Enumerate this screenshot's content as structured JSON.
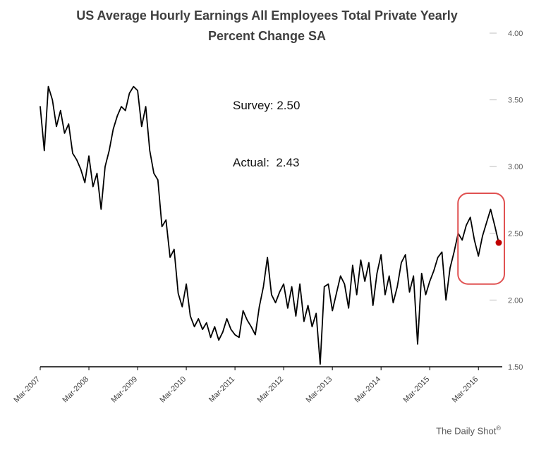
{
  "page": {
    "title_line1": "US Average Hourly Earnings All Employees Total Private Yearly",
    "title_line2": "Percent Change SA",
    "watermark_text": "The Daily Shot",
    "watermark_symbol": "®"
  },
  "annotation": {
    "survey": "Survey: 2.50",
    "actual": "Actual:  2.43"
  },
  "chart_data": {
    "type": "line",
    "title": "US Average Hourly Earnings All Employees Total Private Yearly Percent Change SA",
    "xlabel": "",
    "ylabel": "",
    "x_start_label": "Mar-2007",
    "x_interval": "monthly",
    "x_tick_labels": [
      "Mar-2007",
      "Mar-2008",
      "Mar-2009",
      "Mar-2010",
      "Mar-2011",
      "Mar-2012",
      "Mar-2013",
      "Mar-2014",
      "Mar-2015",
      "Mar-2016"
    ],
    "x_tick_indices": [
      0,
      12,
      24,
      36,
      48,
      60,
      72,
      84,
      96,
      108
    ],
    "y_ticks": [
      "1.50",
      "2.00",
      "2.50",
      "3.00",
      "3.50",
      "4.00"
    ],
    "ylim": [
      1.5,
      4.0
    ],
    "grid": "off",
    "legend": "none",
    "line_color": "#000000",
    "series": [
      {
        "name": "US Average Hourly Earnings YoY % Change SA",
        "values": [
          3.45,
          3.12,
          3.6,
          3.5,
          3.3,
          3.42,
          3.25,
          3.32,
          3.1,
          3.05,
          2.98,
          2.88,
          3.08,
          2.85,
          2.95,
          2.68,
          3.0,
          3.12,
          3.28,
          3.38,
          3.45,
          3.42,
          3.55,
          3.6,
          3.57,
          3.3,
          3.45,
          3.12,
          2.95,
          2.9,
          2.55,
          2.6,
          2.32,
          2.38,
          2.05,
          1.95,
          2.12,
          1.88,
          1.8,
          1.86,
          1.78,
          1.83,
          1.72,
          1.8,
          1.7,
          1.76,
          1.86,
          1.78,
          1.74,
          1.72,
          1.92,
          1.85,
          1.8,
          1.74,
          1.95,
          2.1,
          2.32,
          2.04,
          1.98,
          2.06,
          2.12,
          1.94,
          2.1,
          1.88,
          2.12,
          1.84,
          1.96,
          1.8,
          1.9,
          1.52,
          2.1,
          2.12,
          1.92,
          2.05,
          2.18,
          2.12,
          1.94,
          2.26,
          2.04,
          2.3,
          2.14,
          2.28,
          1.96,
          2.2,
          2.34,
          2.04,
          2.18,
          1.98,
          2.1,
          2.28,
          2.34,
          2.06,
          2.18,
          1.67,
          2.2,
          2.04,
          2.14,
          2.22,
          2.32,
          2.36,
          2.0,
          2.24,
          2.36,
          2.5,
          2.45,
          2.56,
          2.62,
          2.45,
          2.33,
          2.48,
          2.58,
          2.68,
          2.56,
          2.43
        ]
      }
    ],
    "survey_value": 2.5,
    "actual_value": 2.43,
    "highlight_box": {
      "color": "#e05252",
      "start_index": 104,
      "end_index": 113,
      "y_top": 2.8,
      "y_bottom": 2.12
    },
    "last_point": {
      "value": 2.43,
      "color": "#c00000"
    }
  }
}
